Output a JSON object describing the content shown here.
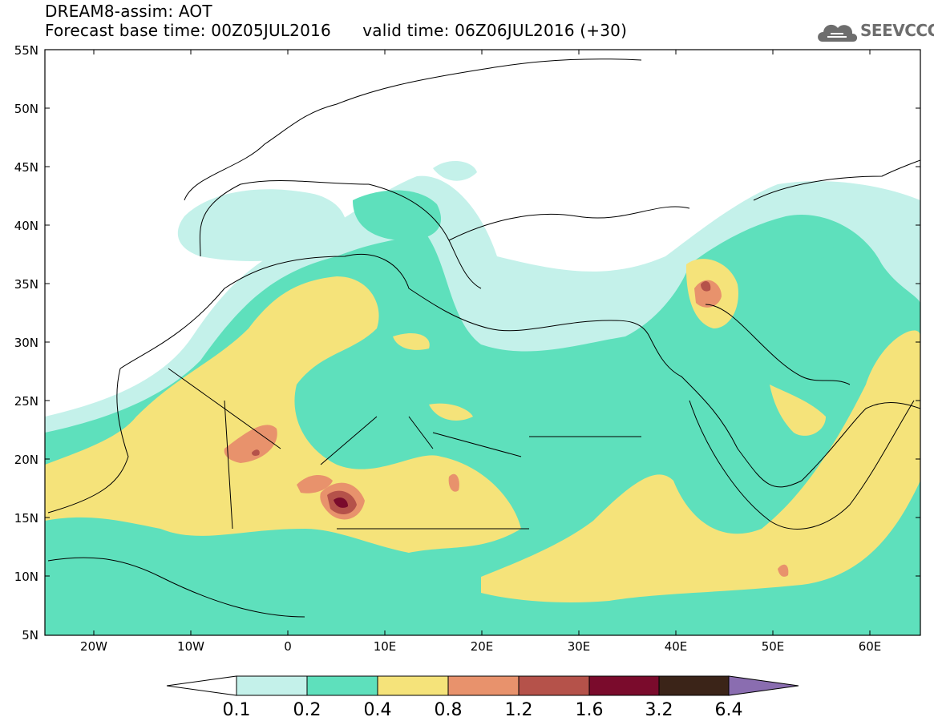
{
  "header": {
    "title": "DREAM8-assim: AOT",
    "subtitle": "Forecast base time: 00Z05JUL2016      valid time: 06Z06JUL2016 (+30)"
  },
  "logo": {
    "text": "SEEVCCC"
  },
  "map": {
    "lat_ticks": [
      "55N",
      "50N",
      "45N",
      "40N",
      "35N",
      "30N",
      "25N",
      "20N",
      "15N",
      "10N",
      "5N"
    ],
    "lon_ticks": [
      "20W",
      "10W",
      "0",
      "10E",
      "20E",
      "30E",
      "40E",
      "50E",
      "60E"
    ],
    "lon_range": [
      -25,
      65
    ],
    "lat_range": [
      5,
      55
    ]
  },
  "colorbar": {
    "labels": [
      "0.1",
      "0.2",
      "0.4",
      "0.8",
      "1.2",
      "1.6",
      "3.2",
      "6.4"
    ],
    "colors": [
      "#ffffff",
      "#c4f1ea",
      "#5ee0bc",
      "#f5e37a",
      "#e8926c",
      "#b5524a",
      "#7a0b2c",
      "#3b2418",
      "#8a6db0"
    ]
  },
  "colors": {
    "c1": "#c4f1ea",
    "c2": "#5ee0bc",
    "c3": "#f5e37a",
    "c4": "#e8926c",
    "c5": "#b5524a",
    "c6": "#7a0b2c"
  }
}
